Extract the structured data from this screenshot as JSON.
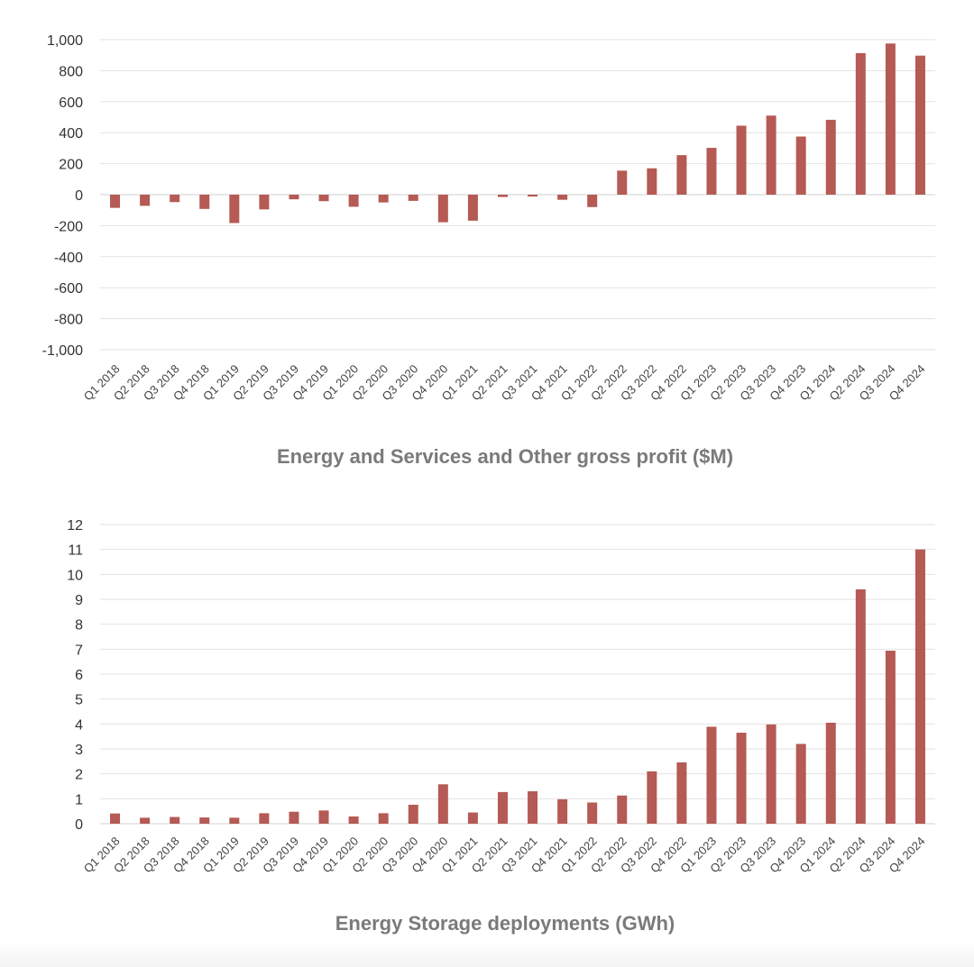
{
  "chart_data": [
    {
      "type": "bar",
      "title": "Energy and Services and Other gross profit ($M)",
      "xlabel": "",
      "ylabel": "",
      "ylim": [
        -1000,
        1000
      ],
      "yticks": [
        -1000,
        -800,
        -600,
        -400,
        -200,
        0,
        200,
        400,
        600,
        800,
        1000
      ],
      "ytick_labels": [
        "-1,000",
        "-800",
        "-600",
        "-400",
        "-200",
        "0",
        "200",
        "400",
        "600",
        "800",
        "1,000"
      ],
      "categories": [
        "Q1 2018",
        "Q2 2018",
        "Q3 2018",
        "Q4 2018",
        "Q1 2019",
        "Q2 2019",
        "Q3 2019",
        "Q4 2019",
        "Q1 2020",
        "Q2 2020",
        "Q3 2020",
        "Q4 2020",
        "Q1 2021",
        "Q2 2021",
        "Q3 2021",
        "Q4 2021",
        "Q1 2022",
        "Q2 2022",
        "Q3 2022",
        "Q4 2022",
        "Q1 2023",
        "Q2 2023",
        "Q3 2023",
        "Q4 2023",
        "Q1 2024",
        "Q2 2024",
        "Q3 2024",
        "Q4 2024"
      ],
      "values": [
        -85,
        -72,
        -48,
        -92,
        -183,
        -95,
        -30,
        -42,
        -78,
        -50,
        -40,
        -178,
        -168,
        -15,
        -12,
        -33,
        -80,
        155,
        170,
        255,
        302,
        445,
        510,
        375,
        483,
        913,
        975,
        897
      ],
      "color": "#b55a54",
      "grid": true,
      "legend": "none"
    },
    {
      "type": "bar",
      "title": "Energy Storage deployments (GWh)",
      "xlabel": "",
      "ylabel": "",
      "ylim": [
        0,
        12
      ],
      "yticks": [
        0,
        1,
        2,
        3,
        4,
        5,
        6,
        7,
        8,
        9,
        10,
        11,
        12
      ],
      "ytick_labels": [
        "0",
        "1",
        "2",
        "3",
        "4",
        "5",
        "6",
        "7",
        "8",
        "9",
        "10",
        "11",
        "12"
      ],
      "categories": [
        "Q1 2018",
        "Q2 2018",
        "Q3 2018",
        "Q4 2018",
        "Q1 2019",
        "Q2 2019",
        "Q3 2019",
        "Q4 2019",
        "Q1 2020",
        "Q2 2020",
        "Q3 2020",
        "Q4 2020",
        "Q1 2021",
        "Q2 2021",
        "Q3 2021",
        "Q4 2021",
        "Q1 2022",
        "Q2 2022",
        "Q3 2022",
        "Q4 2022",
        "Q1 2023",
        "Q2 2023",
        "Q3 2023",
        "Q4 2023",
        "Q1 2024",
        "Q2 2024",
        "Q3 2024",
        "Q4 2024"
      ],
      "values": [
        0.41,
        0.24,
        0.27,
        0.25,
        0.24,
        0.42,
        0.48,
        0.53,
        0.29,
        0.42,
        0.76,
        1.58,
        0.45,
        1.27,
        1.3,
        0.98,
        0.85,
        1.13,
        2.1,
        2.46,
        3.89,
        3.65,
        3.98,
        3.2,
        4.05,
        9.4,
        6.94,
        11.0
      ],
      "color": "#b55a54",
      "grid": true,
      "legend": "none"
    }
  ]
}
